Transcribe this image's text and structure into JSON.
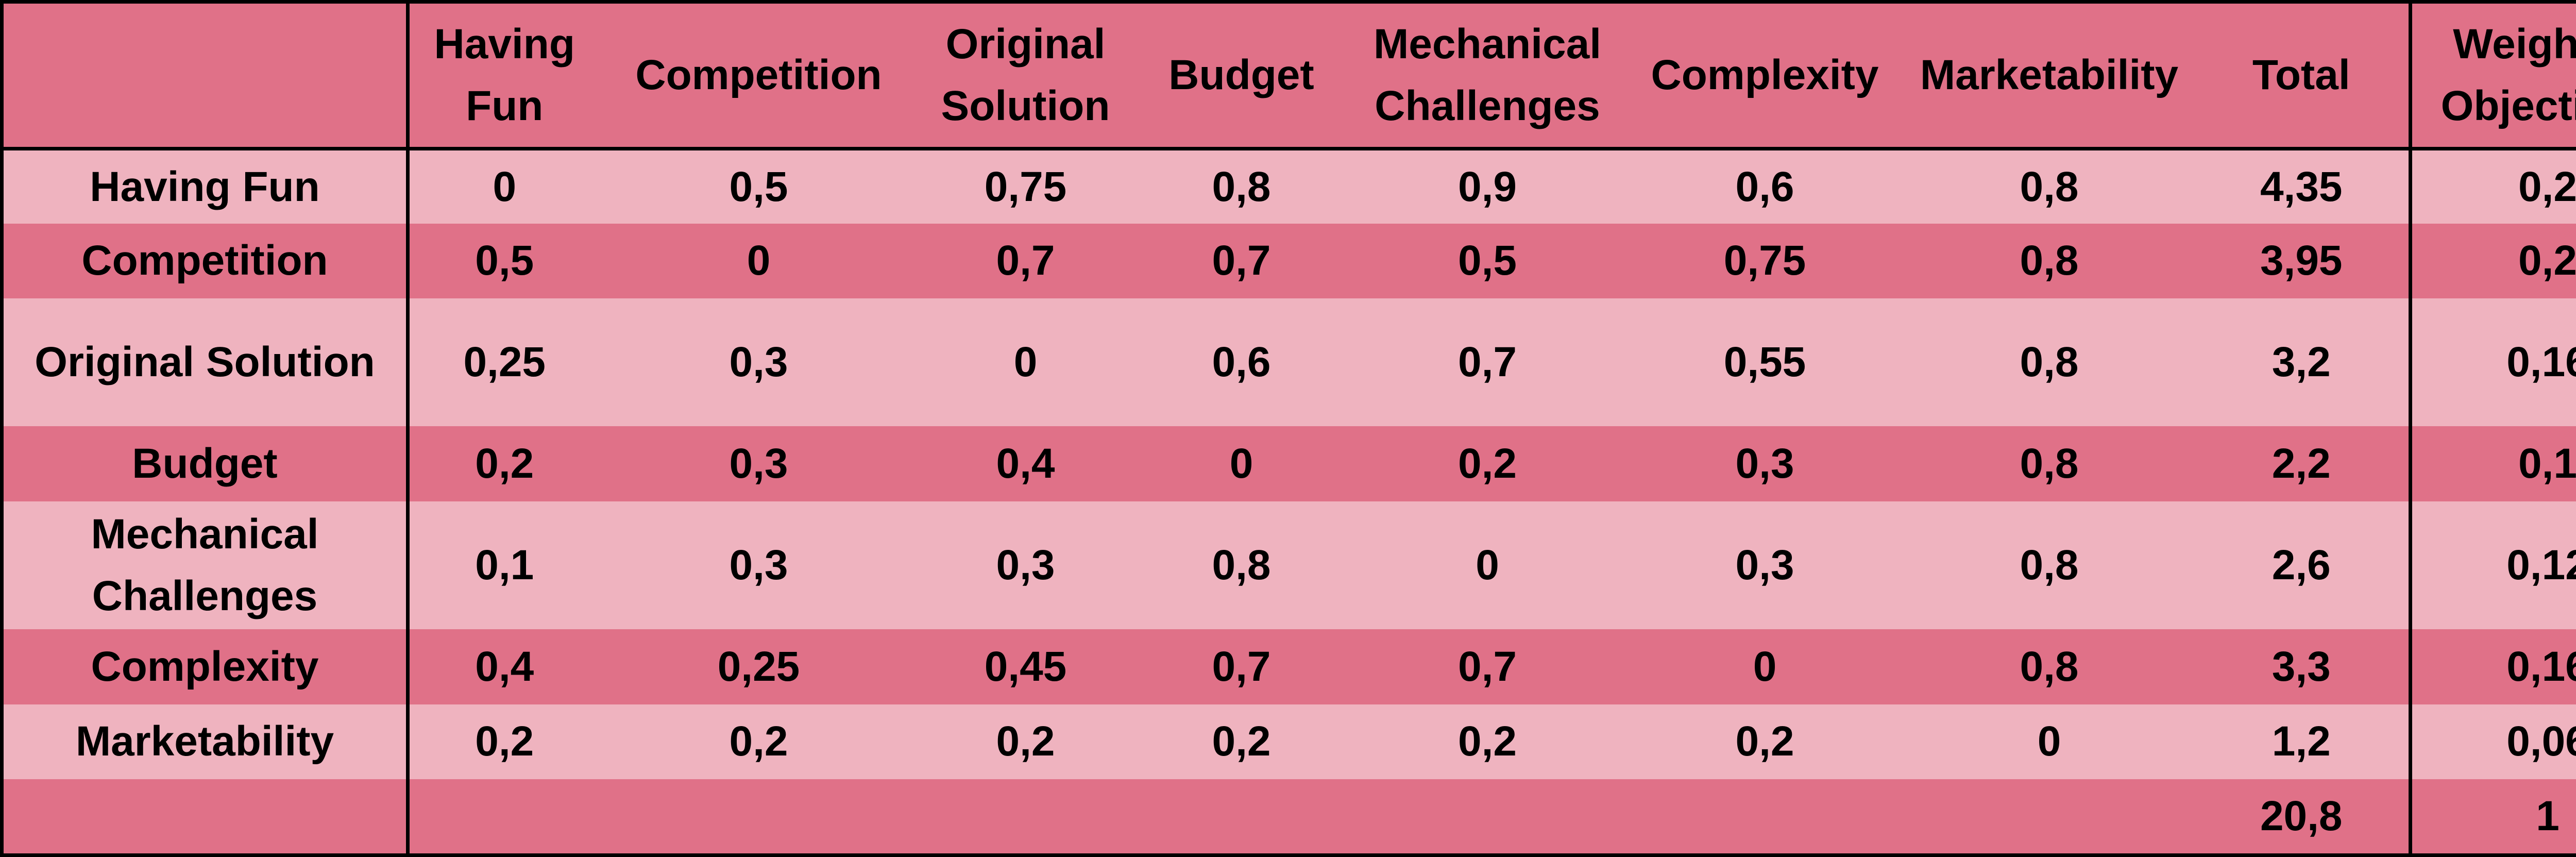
{
  "header": {
    "corner": "",
    "columns": [
      "Having Fun",
      "Competition",
      "Original Solution",
      "Budget",
      "Mechanical Challenges",
      "Complexity",
      "Marketability",
      "Total",
      "Weighted Objectives"
    ]
  },
  "rows": [
    {
      "label": "Having Fun",
      "values": [
        "0",
        "0,5",
        "0,75",
        "0,8",
        "0,9",
        "0,6",
        "0,8"
      ],
      "total": "4,35",
      "weighted": "0,2"
    },
    {
      "label": "Competition",
      "values": [
        "0,5",
        "0",
        "0,7",
        "0,7",
        "0,5",
        "0,75",
        "0,8"
      ],
      "total": "3,95",
      "weighted": "0,2"
    },
    {
      "label": "Original Solution",
      "values": [
        "0,25",
        "0,3",
        "0",
        "0,6",
        "0,7",
        "0,55",
        "0,8"
      ],
      "total": "3,2",
      "weighted": "0,16"
    },
    {
      "label": "Budget",
      "values": [
        "0,2",
        "0,3",
        "0,4",
        "0",
        "0,2",
        "0,3",
        "0,8"
      ],
      "total": "2,2",
      "weighted": "0,1"
    },
    {
      "label": "Mechanical Challenges",
      "values": [
        "0,1",
        "0,3",
        "0,3",
        "0,8",
        "0",
        "0,3",
        "0,8"
      ],
      "total": "2,6",
      "weighted": "0,12"
    },
    {
      "label": "Complexity",
      "values": [
        "0,4",
        "0,25",
        "0,45",
        "0,7",
        "0,7",
        "0",
        "0,8"
      ],
      "total": "3,3",
      "weighted": "0,16"
    },
    {
      "label": "Marketability",
      "values": [
        "0,2",
        "0,2",
        "0,2",
        "0,2",
        "0,2",
        "0,2",
        "0"
      ],
      "total": "1,2",
      "weighted": "0,06"
    }
  ],
  "footer": {
    "total": "20,8",
    "weighted": "1"
  },
  "colors": {
    "dark_row": "#e07188",
    "light_row": "#efb3bf",
    "border": "#000000"
  }
}
